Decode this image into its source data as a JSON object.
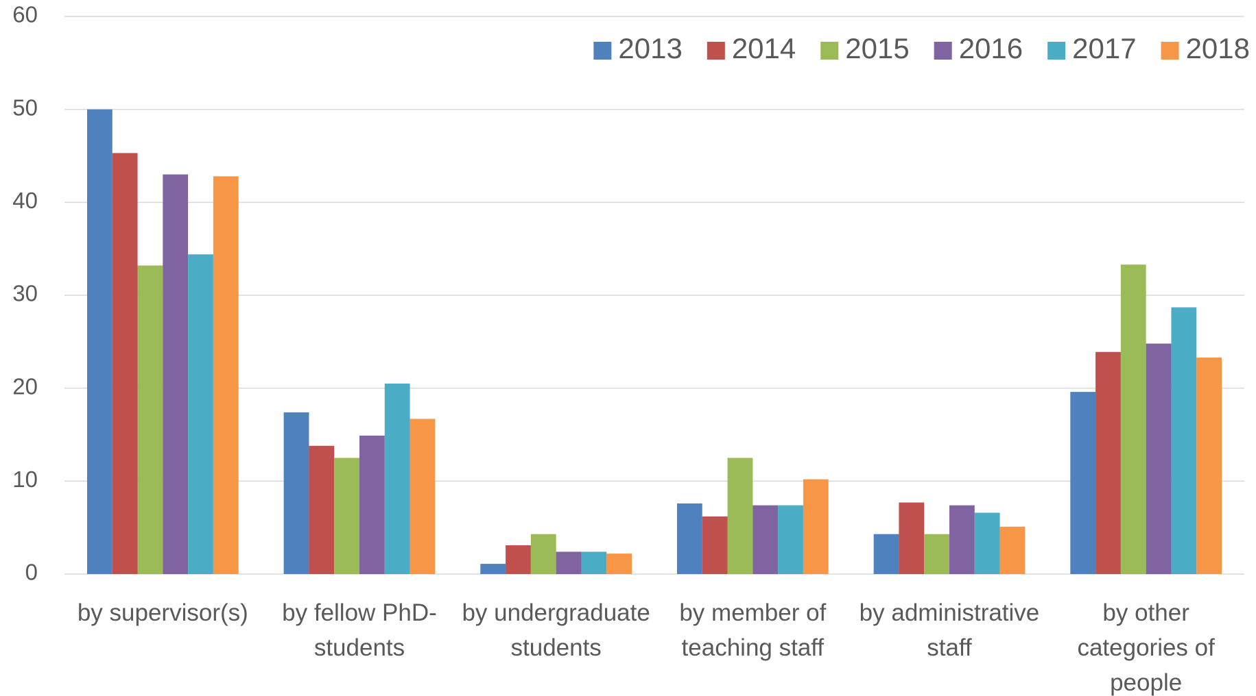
{
  "chart_data": {
    "type": "bar",
    "categories": [
      "by supervisor(s)",
      "by fellow PhD-students",
      "by undergraduate students",
      "by member of teaching staff",
      "by administrative staff",
      "by other categories of people"
    ],
    "series": [
      {
        "name": "2013",
        "color": "#4f81bd",
        "values": [
          50,
          17.4,
          1.1,
          7.6,
          4.3,
          19.6
        ]
      },
      {
        "name": "2014",
        "color": "#c0504d",
        "values": [
          45.3,
          13.8,
          3.1,
          6.2,
          7.7,
          23.9
        ]
      },
      {
        "name": "2015",
        "color": "#9bbb59",
        "values": [
          33.2,
          12.5,
          4.3,
          12.5,
          4.3,
          33.3
        ]
      },
      {
        "name": "2016",
        "color": "#8064a2",
        "values": [
          43,
          14.9,
          2.4,
          7.4,
          7.4,
          24.8
        ]
      },
      {
        "name": "2017",
        "color": "#4bacc6",
        "values": [
          34.4,
          20.5,
          2.4,
          7.4,
          6.6,
          28.7
        ]
      },
      {
        "name": "2018",
        "color": "#f79646",
        "values": [
          42.8,
          16.7,
          2.2,
          10.2,
          5.1,
          23.3
        ]
      }
    ],
    "ylim": [
      0,
      60
    ],
    "yticks": [
      0,
      10,
      20,
      30,
      40,
      50,
      60
    ],
    "grid": true,
    "legend": "top-right"
  }
}
